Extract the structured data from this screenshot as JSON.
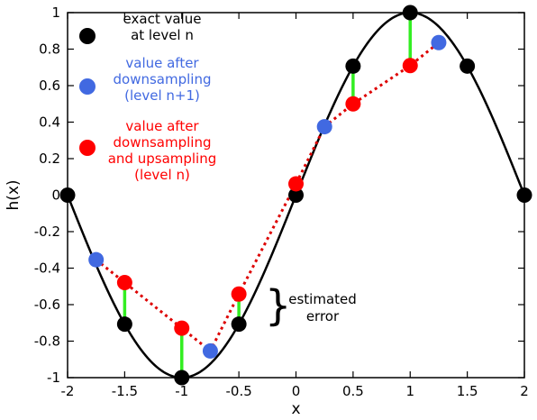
{
  "chart_data": {
    "type": "scatter",
    "title": "",
    "xlabel": "x",
    "ylabel": "h(x)",
    "xlim": [
      -2,
      2
    ],
    "ylim": [
      -1,
      1
    ],
    "grid": false,
    "x_ticks": [
      -2,
      -1.5,
      -1,
      -0.5,
      0,
      0.5,
      1,
      1.5,
      2
    ],
    "x_tick_labels": [
      "-2",
      "-1.5",
      "-1",
      "-0.5",
      "0",
      "0.5",
      "1",
      "1.5",
      "2"
    ],
    "y_ticks": [
      -1,
      -0.8,
      -0.6,
      -0.4,
      -0.2,
      0,
      0.2,
      0.4,
      0.6,
      0.8,
      1
    ],
    "y_tick_labels": [
      "-1",
      "-0.8",
      "-0.6",
      "-0.4",
      "-0.2",
      "0",
      "0.2",
      "0.4",
      "0.6",
      "0.8",
      "1"
    ],
    "curve": {
      "function": "sin(pi*x/2)",
      "color": "#000000"
    },
    "series": [
      {
        "name": "exact value at level n",
        "color": "#000000",
        "x": [
          -2,
          -1.5,
          -1,
          -0.5,
          0,
          0.5,
          1,
          1.5,
          2
        ],
        "y": [
          0,
          -0.707,
          -1,
          -0.707,
          0,
          0.707,
          1,
          0.707,
          0
        ]
      },
      {
        "name": "value after downsampling (level n+1)",
        "color": "#4169e1",
        "x": [
          -1.75,
          -0.75,
          0.25,
          1.25
        ],
        "y": [
          -0.354,
          -0.854,
          0.375,
          0.836
        ]
      },
      {
        "name": "value after downsampling and upsampling (level n)",
        "color": "#ff0000",
        "x": [
          -1.5,
          -1,
          -0.5,
          0,
          0.5,
          1
        ],
        "y": [
          -0.479,
          -0.729,
          -0.542,
          0.062,
          0.5,
          0.71
        ]
      }
    ],
    "error_segments_color": "#33ee22",
    "dotted_line_color": "#dd0000",
    "legend_position": "top-left",
    "legend": [
      {
        "lines": [
          "exact value",
          "at level n"
        ],
        "color": "#000000"
      },
      {
        "lines": [
          "value after",
          "downsampling",
          "(level n+1)"
        ],
        "color": "#4169e1"
      },
      {
        "lines": [
          "value after",
          "downsampling",
          "and upsampling",
          "(level n)"
        ],
        "color": "#ff0000"
      }
    ],
    "annotation": {
      "lines": [
        "estimated",
        "error"
      ],
      "brace": "}"
    }
  }
}
